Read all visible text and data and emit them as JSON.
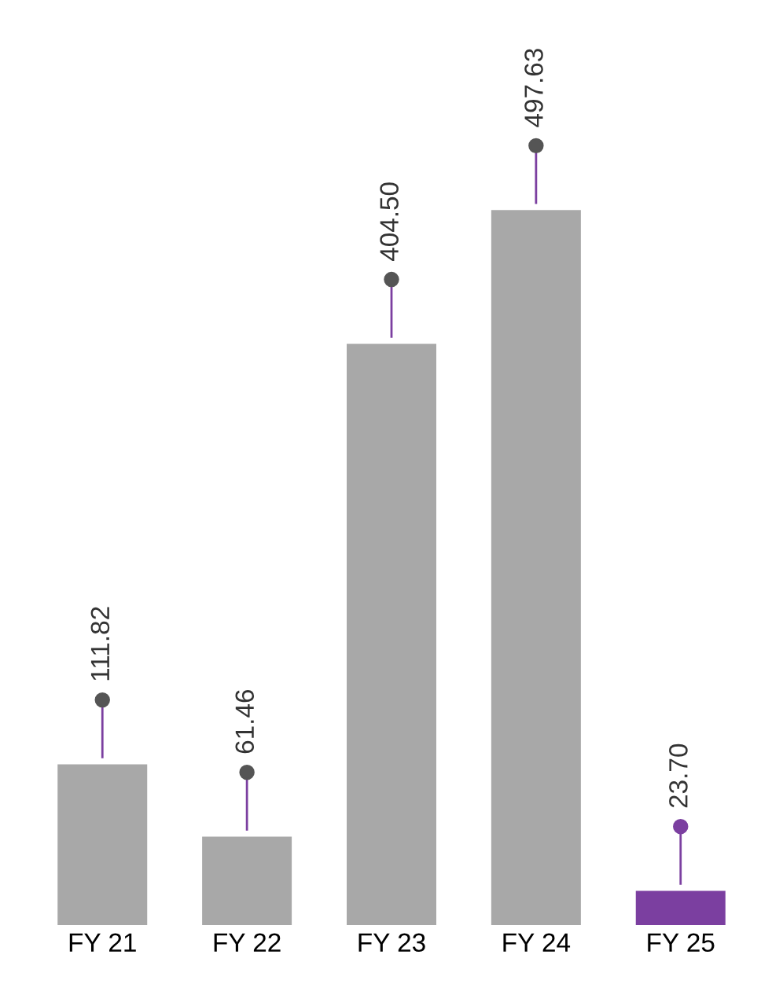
{
  "chart_data": {
    "type": "bar",
    "categories": [
      "FY 21",
      "FY 22",
      "FY 23",
      "FY 24",
      "FY 25"
    ],
    "values": [
      111.82,
      61.46,
      404.5,
      497.63,
      23.7
    ],
    "value_labels": [
      "111.82",
      "61.46",
      "404.50",
      "497.63",
      "23.70"
    ],
    "colors": [
      "#a8a8a8",
      "#a8a8a8",
      "#a8a8a8",
      "#a8a8a8",
      "#7b3fa0"
    ],
    "tick_labels": "x",
    "grid": false,
    "legend": false
  }
}
